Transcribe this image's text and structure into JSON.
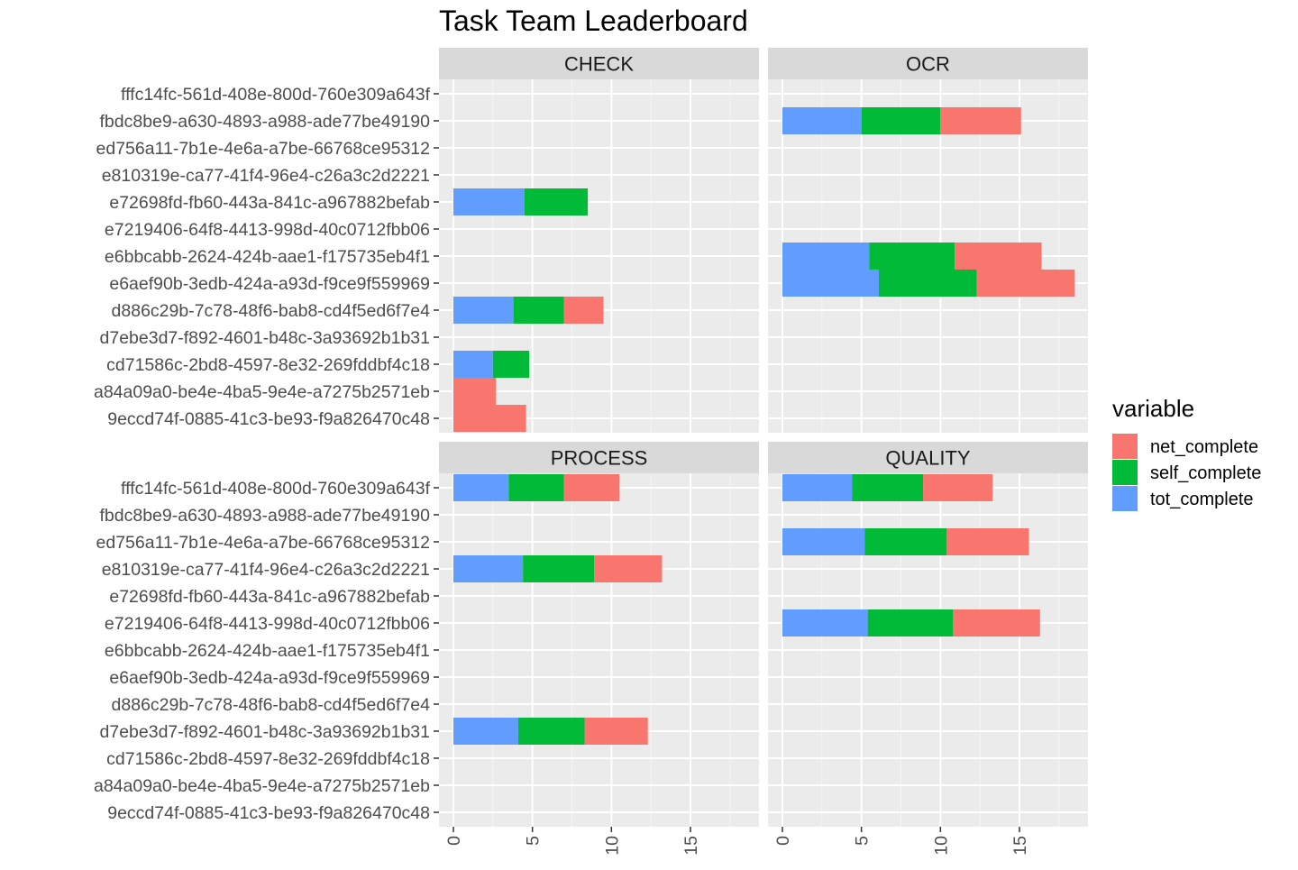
{
  "chart_data": {
    "type": "bar",
    "orientation": "horizontal",
    "stacked": true,
    "title": "Task Team Leaderboard",
    "xlabel": "",
    "ylabel": "",
    "xlim": [
      0,
      18.5
    ],
    "x_ticks": [
      0,
      5,
      10,
      15
    ],
    "grid": true,
    "legend": {
      "title": "variable",
      "position": "right",
      "entries": [
        "net_complete",
        "self_complete",
        "tot_complete"
      ]
    },
    "colors": {
      "net_complete": "#F8766D",
      "self_complete": "#00BA38",
      "tot_complete": "#619CFF"
    },
    "categories": [
      "fffc14fc-561d-408e-800d-760e309a643f",
      "fbdc8be9-a630-4893-a988-ade77be49190",
      "ed756a11-7b1e-4e6a-a7be-66768ce95312",
      "e810319e-ca77-41f4-96e4-c26a3c2d2221",
      "e72698fd-fb60-443a-841c-a967882befab",
      "e7219406-64f8-4413-998d-40c0712fbb06",
      "e6bbcabb-2624-424b-aae1-f175735eb4f1",
      "e6aef90b-3edb-424a-a93d-f9ce9f559969",
      "d886c29b-7c78-48f6-bab8-cd4f5ed6f7e4",
      "d7ebe3d7-f892-4601-b48c-3a93692b1b31",
      "cd71586c-2bd8-4597-8e32-269fddbf4c18",
      "a84a09a0-be4e-4ba5-9e4e-a7275b2571eb",
      "9eccd74f-0885-41c3-be93-f9a826470c48"
    ],
    "stack_order": [
      "tot_complete",
      "self_complete",
      "net_complete"
    ],
    "facets": [
      {
        "name": "CHECK",
        "bars": [
          {
            "category": "e72698fd-fb60-443a-841c-a967882befab",
            "tot_complete": 4.5,
            "self_complete": 4.0,
            "net_complete": 0
          },
          {
            "category": "d886c29b-7c78-48f6-bab8-cd4f5ed6f7e4",
            "tot_complete": 3.8,
            "self_complete": 3.2,
            "net_complete": 2.5
          },
          {
            "category": "cd71586c-2bd8-4597-8e32-269fddbf4c18",
            "tot_complete": 2.5,
            "self_complete": 2.3,
            "net_complete": 0
          },
          {
            "category": "a84a09a0-be4e-4ba5-9e4e-a7275b2571eb",
            "tot_complete": 0,
            "self_complete": 0,
            "net_complete": 2.7
          },
          {
            "category": "9eccd74f-0885-41c3-be93-f9a826470c48",
            "tot_complete": 0,
            "self_complete": 0,
            "net_complete": 4.6
          }
        ]
      },
      {
        "name": "OCR",
        "bars": [
          {
            "category": "fbdc8be9-a630-4893-a988-ade77be49190",
            "tot_complete": 5.0,
            "self_complete": 5.0,
            "net_complete": 5.1
          },
          {
            "category": "e6bbcabb-2624-424b-aae1-f175735eb4f1",
            "tot_complete": 5.5,
            "self_complete": 5.4,
            "net_complete": 5.5
          },
          {
            "category": "e6aef90b-3edb-424a-a93d-f9ce9f559969",
            "tot_complete": 6.1,
            "self_complete": 6.2,
            "net_complete": 6.2
          }
        ]
      },
      {
        "name": "PROCESS",
        "bars": [
          {
            "category": "fffc14fc-561d-408e-800d-760e309a643f",
            "tot_complete": 3.5,
            "self_complete": 3.5,
            "net_complete": 3.5
          },
          {
            "category": "e810319e-ca77-41f4-96e4-c26a3c2d2221",
            "tot_complete": 4.4,
            "self_complete": 4.5,
            "net_complete": 4.3
          },
          {
            "category": "d7ebe3d7-f892-4601-b48c-3a93692b1b31",
            "tot_complete": 4.1,
            "self_complete": 4.2,
            "net_complete": 4.0
          }
        ]
      },
      {
        "name": "QUALITY",
        "bars": [
          {
            "category": "fffc14fc-561d-408e-800d-760e309a643f",
            "tot_complete": 4.4,
            "self_complete": 4.5,
            "net_complete": 4.4
          },
          {
            "category": "ed756a11-7b1e-4e6a-a7be-66768ce95312",
            "tot_complete": 5.2,
            "self_complete": 5.2,
            "net_complete": 5.2
          },
          {
            "category": "e7219406-64f8-4413-998d-40c0712fbb06",
            "tot_complete": 5.4,
            "self_complete": 5.4,
            "net_complete": 5.5
          }
        ]
      }
    ]
  }
}
